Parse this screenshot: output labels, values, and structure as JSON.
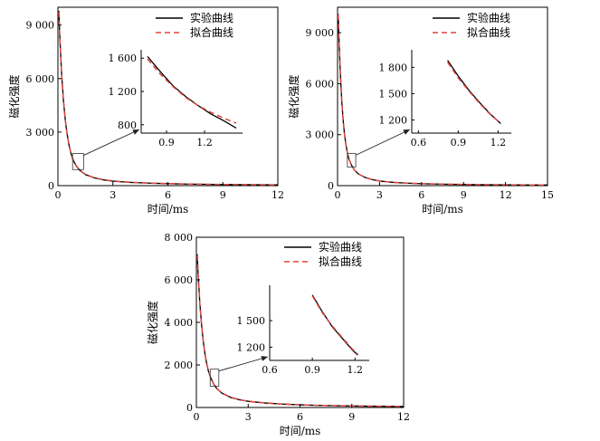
{
  "legend": {
    "experimental": "实验曲线",
    "fitted": "拟合曲线"
  },
  "colors": {
    "experimental": "#000000",
    "fitted": "#e0443c",
    "axis": "#000000"
  },
  "chart_data": [
    {
      "type": "line",
      "title": "",
      "xlabel": "时间/ms",
      "ylabel": "磁化强度",
      "xlim": [
        0,
        12
      ],
      "ylim": [
        0,
        10000
      ],
      "xticks": [
        0,
        3,
        6,
        9,
        12
      ],
      "xtick_labels": [
        "0",
        "3",
        "6",
        "9",
        "12"
      ],
      "yticks": [
        0,
        3000,
        6000,
        9000
      ],
      "ytick_labels": [
        "0",
        "3 000",
        "6 000",
        "9 000"
      ],
      "legend_position": "top-right",
      "grid": false,
      "zoom_box": {
        "x": [
          0.8,
          1.4
        ],
        "y": [
          900,
          1800
        ]
      },
      "series": [
        {
          "name": "实验曲线",
          "style": "solid",
          "x": [
            0.05,
            0.1,
            0.2,
            0.3,
            0.4,
            0.5,
            0.6,
            0.7,
            0.8,
            1,
            1.2,
            1.5,
            2,
            2.5,
            3,
            4,
            5,
            6,
            7,
            8,
            9,
            10,
            11,
            12
          ],
          "y": [
            9800,
            8400,
            6300,
            4800,
            3700,
            2900,
            2300,
            1850,
            1500,
            1100,
            850,
            620,
            430,
            320,
            250,
            180,
            140,
            110,
            90,
            75,
            65,
            55,
            48,
            42
          ]
        },
        {
          "name": "拟合曲线",
          "style": "dashed",
          "x": [
            0.05,
            0.1,
            0.2,
            0.3,
            0.4,
            0.5,
            0.6,
            0.7,
            0.8,
            1,
            1.2,
            1.5,
            2,
            2.5,
            3,
            4,
            5,
            6,
            7,
            8,
            9,
            10,
            11,
            12
          ],
          "y": [
            9750,
            8350,
            6280,
            4780,
            3690,
            2890,
            2300,
            1860,
            1520,
            1120,
            860,
            630,
            440,
            330,
            260,
            185,
            145,
            115,
            92,
            78,
            66,
            56,
            49,
            43
          ]
        }
      ],
      "inset": {
        "xlim": [
          0.7,
          1.5
        ],
        "ylim": [
          700,
          1700
        ],
        "xticks": [
          0.9,
          1.2
        ],
        "xtick_labels": [
          "0.9",
          "1.2"
        ],
        "yticks": [
          800,
          1200,
          1600
        ],
        "ytick_labels": [
          "800",
          "1 200",
          "1 600"
        ],
        "series": [
          {
            "name": "实验曲线",
            "x": [
              0.75,
              0.85,
              0.95,
              1.05,
              1.15,
              1.25,
              1.35,
              1.45
            ],
            "y": [
              1620,
              1440,
              1270,
              1140,
              1030,
              930,
              850,
              760
            ]
          },
          {
            "name": "拟合曲线",
            "x": [
              0.75,
              0.85,
              0.95,
              1.05,
              1.15,
              1.25,
              1.35,
              1.45
            ],
            "y": [
              1590,
              1410,
              1260,
              1130,
              1030,
              950,
              880,
              820
            ]
          }
        ]
      }
    },
    {
      "type": "line",
      "title": "",
      "xlabel": "时间/ms",
      "ylabel": "磁化强度",
      "xlim": [
        0,
        15
      ],
      "ylim": [
        0,
        10500
      ],
      "xticks": [
        0,
        3,
        6,
        9,
        12,
        15
      ],
      "xtick_labels": [
        "0",
        "3",
        "6",
        "9",
        "12",
        "15"
      ],
      "yticks": [
        0,
        3000,
        6000,
        9000
      ],
      "ytick_labels": [
        "0",
        "3 000",
        "6 000",
        "9 000"
      ],
      "legend_position": "top-right",
      "grid": false,
      "zoom_box": {
        "x": [
          0.7,
          1.3
        ],
        "y": [
          1100,
          1900
        ]
      },
      "series": [
        {
          "name": "实验曲线",
          "style": "solid",
          "x": [
            0.05,
            0.1,
            0.2,
            0.3,
            0.4,
            0.5,
            0.6,
            0.7,
            0.8,
            1,
            1.2,
            1.5,
            2,
            2.5,
            3,
            4,
            5,
            6,
            8,
            10,
            12,
            14,
            15
          ],
          "y": [
            10100,
            8700,
            6600,
            5000,
            3850,
            3000,
            2400,
            1950,
            1600,
            1200,
            920,
            680,
            470,
            350,
            270,
            190,
            145,
            115,
            80,
            60,
            48,
            40,
            37
          ]
        },
        {
          "name": "拟合曲线",
          "style": "dashed",
          "x": [
            0.05,
            0.1,
            0.2,
            0.3,
            0.4,
            0.5,
            0.6,
            0.7,
            0.8,
            1,
            1.2,
            1.5,
            2,
            2.5,
            3,
            4,
            5,
            6,
            8,
            10,
            12,
            14,
            15
          ],
          "y": [
            10050,
            8650,
            6580,
            4980,
            3840,
            2990,
            2390,
            1950,
            1600,
            1200,
            925,
            685,
            475,
            355,
            275,
            195,
            150,
            118,
            82,
            62,
            50,
            41,
            38
          ]
        }
      ],
      "inset": {
        "xlim": [
          0.55,
          1.3
        ],
        "ylim": [
          1050,
          2000
        ],
        "xticks": [
          0.6,
          0.9,
          1.2
        ],
        "xtick_labels": [
          "0.6",
          "0.9",
          "1.2"
        ],
        "yticks": [
          1200,
          1500,
          1800
        ],
        "ytick_labels": [
          "1 200",
          "1 500",
          "1 800"
        ],
        "series": [
          {
            "name": "实验曲线",
            "x": [
              0.82,
              0.9,
              0.98,
              1.06,
              1.14,
              1.22
            ],
            "y": [
              1880,
              1700,
              1540,
              1400,
              1270,
              1160
            ]
          },
          {
            "name": "拟合曲线",
            "x": [
              0.82,
              0.9,
              0.98,
              1.06,
              1.14,
              1.22
            ],
            "y": [
              1860,
              1680,
              1530,
              1390,
              1265,
              1160
            ]
          }
        ]
      }
    },
    {
      "type": "line",
      "title": "",
      "xlabel": "时间/ms",
      "ylabel": "磁化强度",
      "xlim": [
        0,
        12
      ],
      "ylim": [
        0,
        8000
      ],
      "xticks": [
        0,
        3,
        6,
        9,
        12
      ],
      "xtick_labels": [
        "0",
        "3",
        "6",
        "9",
        "12"
      ],
      "yticks": [
        0,
        2000,
        4000,
        6000,
        8000
      ],
      "ytick_labels": [
        "0",
        "2 000",
        "4 000",
        "6 000",
        "8 000"
      ],
      "legend_position": "top-right",
      "grid": false,
      "zoom_box": {
        "x": [
          0.8,
          1.3
        ],
        "y": [
          1000,
          1800
        ]
      },
      "series": [
        {
          "name": "实验曲线",
          "style": "solid",
          "x": [
            0.05,
            0.1,
            0.2,
            0.3,
            0.4,
            0.5,
            0.6,
            0.7,
            0.8,
            1,
            1.2,
            1.5,
            2,
            2.5,
            3,
            4,
            5,
            6,
            7,
            8,
            9,
            10,
            11,
            12
          ],
          "y": [
            7200,
            6300,
            4900,
            3900,
            3100,
            2500,
            2050,
            1700,
            1450,
            1100,
            870,
            660,
            470,
            360,
            290,
            210,
            160,
            125,
            100,
            85,
            72,
            62,
            55,
            48
          ]
        },
        {
          "name": "拟合曲线",
          "style": "dashed",
          "x": [
            0.05,
            0.1,
            0.2,
            0.3,
            0.4,
            0.5,
            0.6,
            0.7,
            0.8,
            1,
            1.2,
            1.5,
            2,
            2.5,
            3,
            4,
            5,
            6,
            7,
            8,
            9,
            10,
            11,
            12
          ],
          "y": [
            7150,
            6260,
            4880,
            3890,
            3100,
            2500,
            2060,
            1710,
            1460,
            1110,
            880,
            670,
            480,
            365,
            295,
            215,
            162,
            127,
            102,
            86,
            73,
            63,
            56,
            49
          ]
        }
      ],
      "inset": {
        "xlim": [
          0.6,
          1.3
        ],
        "ylim": [
          1050,
          1900
        ],
        "xticks": [
          0.6,
          0.9,
          1.2
        ],
        "xtick_labels": [
          "0.6",
          "0.9",
          "1.2"
        ],
        "yticks": [
          1200,
          1500
        ],
        "ytick_labels": [
          "1 200",
          "1 500"
        ],
        "series": [
          {
            "name": "实验曲线",
            "x": [
              0.9,
              0.97,
              1.04,
              1.11,
              1.18,
              1.22
            ],
            "y": [
              1790,
              1600,
              1430,
              1300,
              1170,
              1110
            ]
          },
          {
            "name": "拟合曲线",
            "x": [
              0.9,
              0.97,
              1.04,
              1.11,
              1.18,
              1.22
            ],
            "y": [
              1780,
              1590,
              1440,
              1310,
              1180,
              1120
            ]
          }
        ]
      }
    }
  ]
}
